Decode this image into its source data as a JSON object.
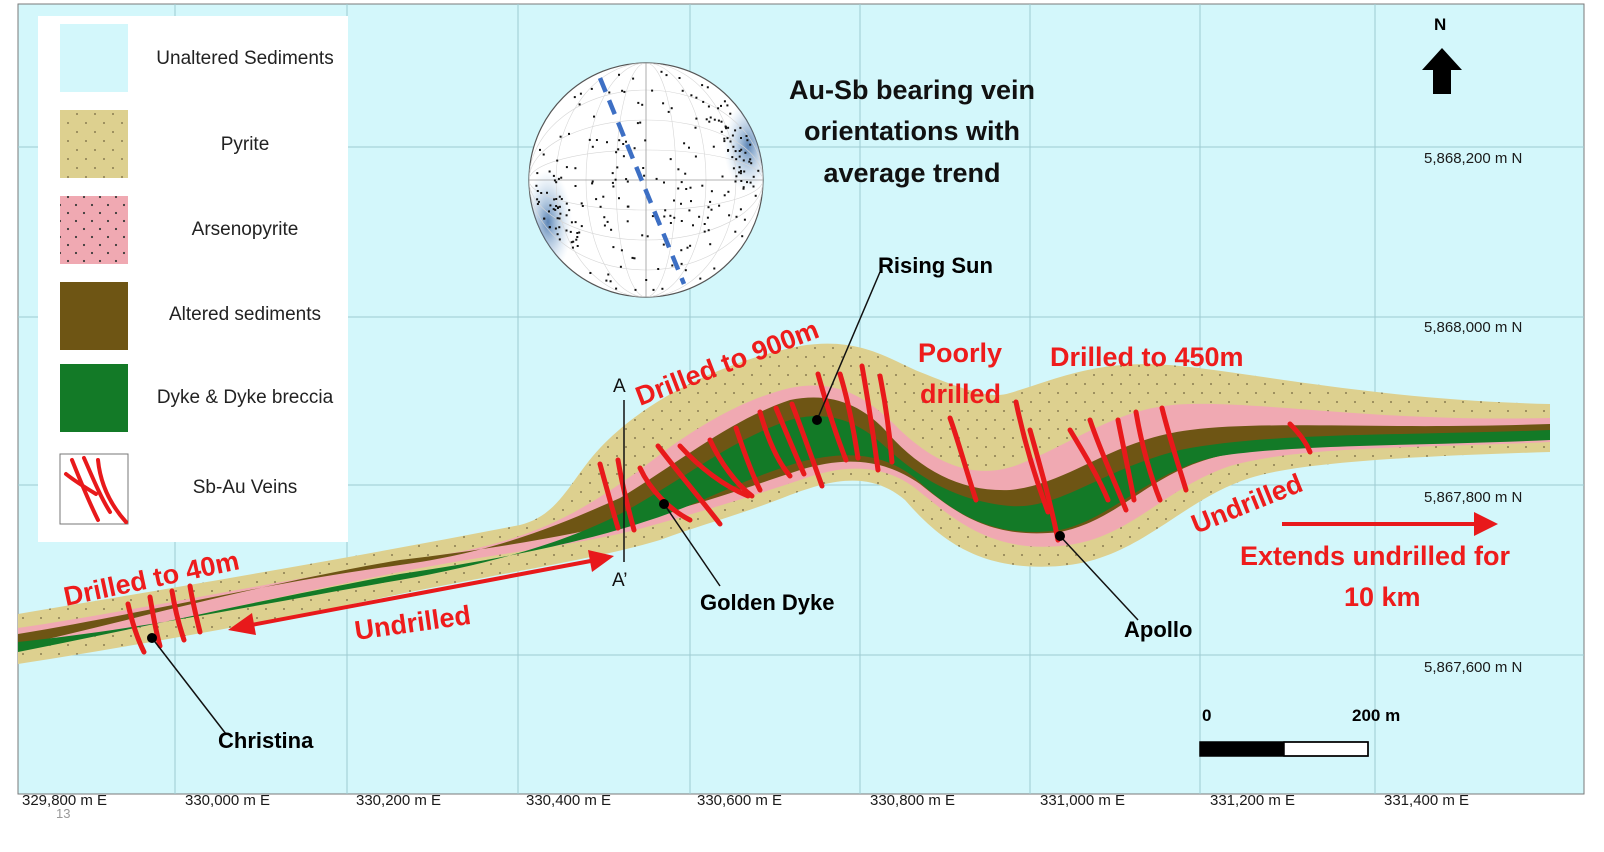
{
  "colors": {
    "background": "#d3f7fb",
    "grid": "#9ecbd2",
    "pyrite": "#ddd08f",
    "arsenopyrite": "#f0a9b2",
    "altered_sediments": "#6e5514",
    "dyke": "#137a27",
    "veins": "#e8191b",
    "annotation_red": "#ee1c1c"
  },
  "legend": {
    "items": [
      {
        "label": "Unaltered Sediments",
        "swatch": "unaltered"
      },
      {
        "label": "Pyrite",
        "swatch": "pyrite"
      },
      {
        "label": "Arsenopyrite",
        "swatch": "arsenopyrite"
      },
      {
        "label": "Altered sediments",
        "swatch": "altered"
      },
      {
        "label": "Dyke & Dyke breccia",
        "swatch": "dyke"
      },
      {
        "label": "Sb-Au Veins",
        "swatch": "veins"
      }
    ]
  },
  "stereonet": {
    "title_lines": [
      "Au-Sb bearing vein",
      "orientations with",
      "average trend"
    ]
  },
  "north_arrow": {
    "label": "N",
    "icon": "north-arrow-icon"
  },
  "northings": [
    "5,868,200 m N",
    "5,868,000 m N",
    "5,867,800 m N",
    "5,867,600 m N"
  ],
  "eastings": [
    "329,800 m E",
    "330,000 m E",
    "330,200 m E",
    "330,400 m E",
    "330,600 m E",
    "330,800 m E",
    "331,000 m E",
    "331,200 m E",
    "331,400 m E"
  ],
  "places": {
    "christina": "Christina",
    "golden_dyke": "Golden Dyke",
    "rising_sun": "Rising Sun",
    "apollo": "Apollo"
  },
  "annotations": {
    "drilled_40": "Drilled to 40m",
    "undrilled_west": "Undrilled",
    "drilled_900": "Drilled to 900m",
    "poorly_1": "Poorly",
    "poorly_2": "drilled",
    "drilled_450": "Drilled to 450m",
    "undrilled_east": "Undrilled",
    "extends_1": "Extends undrilled for",
    "extends_2": "10 km"
  },
  "section": {
    "a": "A",
    "a_prime": "A’"
  },
  "scale_bar": {
    "start": "0",
    "end": "200 m"
  },
  "page_number": "13"
}
